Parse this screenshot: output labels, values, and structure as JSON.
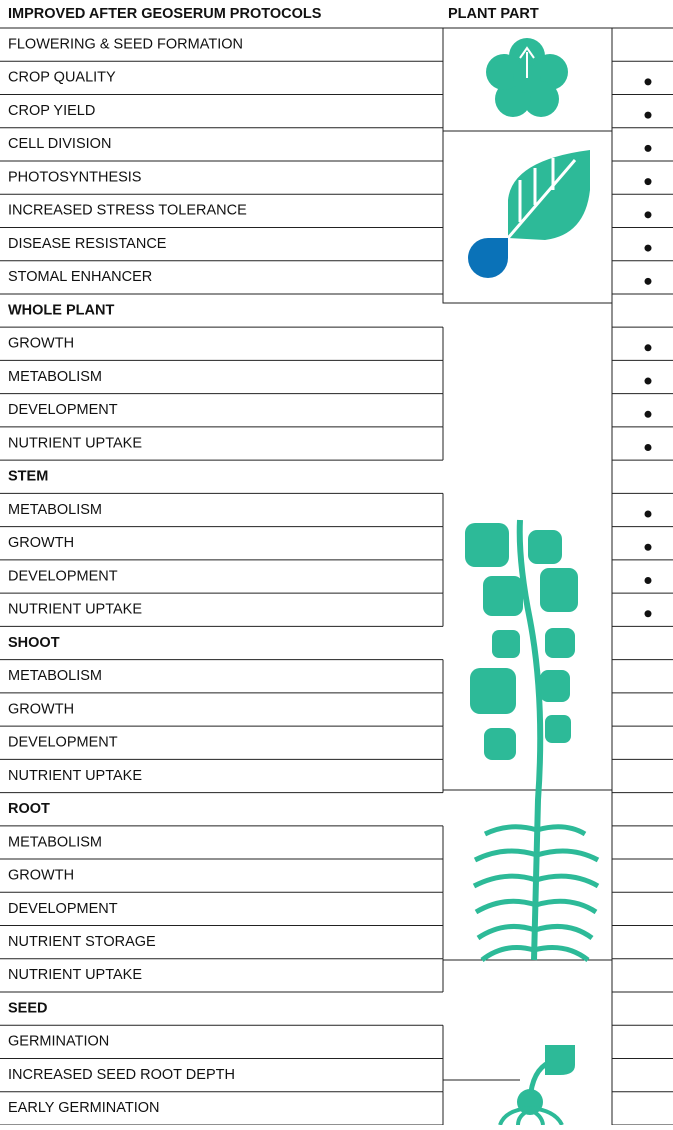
{
  "header": {
    "benefits": "IMPROVED AFTER GEOSERUM PROTOCOLS",
    "plant_part": "PLANT PART"
  },
  "rows": [
    {
      "label": "FLOWERING & SEED FORMATION",
      "section": false,
      "marked": false
    },
    {
      "label": "CROP QUALITY",
      "section": false,
      "marked": true
    },
    {
      "label": "CROP YIELD",
      "section": false,
      "marked": true
    },
    {
      "label": "CELL DIVISION",
      "section": false,
      "marked": true
    },
    {
      "label": "PHOTOSYNTHESIS",
      "section": false,
      "marked": true
    },
    {
      "label": "INCREASED STRESS TOLERANCE",
      "section": false,
      "marked": true
    },
    {
      "label": "DISEASE RESISTANCE",
      "section": false,
      "marked": true
    },
    {
      "label": "STOMAL ENHANCER",
      "section": false,
      "marked": true
    },
    {
      "label": "WHOLE PLANT",
      "section": true,
      "marked": false
    },
    {
      "label": "GROWTH",
      "section": false,
      "marked": true
    },
    {
      "label": "METABOLISM",
      "section": false,
      "marked": true
    },
    {
      "label": "DEVELOPMENT",
      "section": false,
      "marked": true
    },
    {
      "label": "NUTRIENT UPTAKE",
      "section": false,
      "marked": true
    },
    {
      "label": "STEM",
      "section": true,
      "marked": false
    },
    {
      "label": "METABOLISM",
      "section": false,
      "marked": true
    },
    {
      "label": "GROWTH",
      "section": false,
      "marked": true
    },
    {
      "label": "DEVELOPMENT",
      "section": false,
      "marked": true
    },
    {
      "label": "NUTRIENT UPTAKE",
      "section": false,
      "marked": true
    },
    {
      "label": "SHOOT",
      "section": true,
      "marked": false
    },
    {
      "label": "METABOLISM",
      "section": false,
      "marked": false
    },
    {
      "label": "GROWTH",
      "section": false,
      "marked": false
    },
    {
      "label": "DEVELOPMENT",
      "section": false,
      "marked": false
    },
    {
      "label": "NUTRIENT UPTAKE",
      "section": false,
      "marked": false
    },
    {
      "label": "ROOT",
      "section": true,
      "marked": false
    },
    {
      "label": "METABOLISM",
      "section": false,
      "marked": false
    },
    {
      "label": "GROWTH",
      "section": false,
      "marked": false
    },
    {
      "label": "DEVELOPMENT",
      "section": false,
      "marked": false
    },
    {
      "label": "NUTRIENT STORAGE",
      "section": false,
      "marked": false
    },
    {
      "label": "NUTRIENT UPTAKE",
      "section": false,
      "marked": false
    },
    {
      "label": "SEED",
      "section": true,
      "marked": false
    },
    {
      "label": "GERMINATION",
      "section": false,
      "marked": false
    },
    {
      "label": "INCREASED SEED ROOT DEPTH",
      "section": false,
      "marked": false
    },
    {
      "label": "EARLY GERMINATION",
      "section": false,
      "marked": false
    }
  ]
}
